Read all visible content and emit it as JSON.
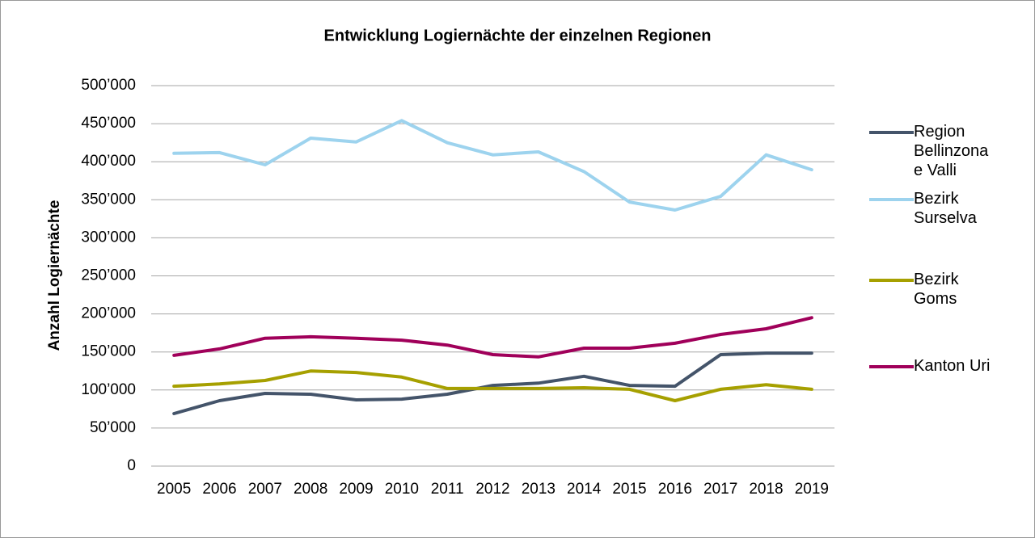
{
  "chart_data": {
    "type": "line",
    "title": "Entwicklung Logiernächte der einzelnen Regionen",
    "y_label": "Anzahl Logiernächte",
    "categories": [
      "2005",
      "2006",
      "2007",
      "2008",
      "2009",
      "2010",
      "2011",
      "2012",
      "2013",
      "2014",
      "2015",
      "2016",
      "2017",
      "2018",
      "2019"
    ],
    "series": [
      {
        "name": "Region Bellinzona e Valli",
        "color": "#44546a",
        "values": [
          69000,
          86000,
          95500,
          94500,
          87000,
          88000,
          94500,
          106000,
          109000,
          118000,
          106000,
          105000,
          146500,
          148500,
          148500
        ]
      },
      {
        "name": "Bezirk Surselva",
        "color": "#9dd3ee",
        "values": [
          411000,
          412000,
          396000,
          431000,
          426000,
          454000,
          425000,
          409000,
          413000,
          387000,
          347000,
          336500,
          354500,
          409000,
          389500
        ]
      },
      {
        "name": "Bezirk Goms",
        "color": "#a6a000",
        "values": [
          105000,
          108000,
          112500,
          125000,
          123000,
          117000,
          102000,
          102000,
          102000,
          103000,
          101000,
          86000,
          101000,
          107000,
          101000
        ]
      },
      {
        "name": "Kanton Uri",
        "color": "#a0005a",
        "values": [
          145500,
          154000,
          168000,
          170000,
          168000,
          165500,
          159000,
          146500,
          143500,
          155000,
          155000,
          161500,
          173000,
          180500,
          195000
        ]
      }
    ],
    "ylim": [
      0,
      500000
    ],
    "yticks": [
      0,
      {
        "value": 50000,
        "label": "50’000"
      },
      {
        "value": 100000,
        "label": "100’000"
      },
      {
        "value": 150000,
        "label": "150’000"
      },
      {
        "value": 200000,
        "label": "200’000"
      },
      {
        "value": 250000,
        "label": "250’000"
      },
      {
        "value": 300000,
        "label": "300’000"
      },
      {
        "value": 350000,
        "label": "350’000"
      },
      {
        "value": 400000,
        "label": "400’000"
      },
      {
        "value": 450000,
        "label": "450’000"
      },
      {
        "value": 500000,
        "label": "500’000"
      }
    ],
    "grid": true,
    "legend": "right"
  }
}
